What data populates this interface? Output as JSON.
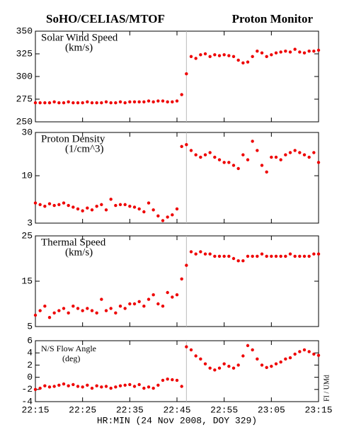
{
  "header_left": "SoHO/CELIAS/MTOF",
  "header_right": "Proton Monitor",
  "xlabel": "HR:MIN (24 Nov 2008, DOY 329)",
  "side_note": "FI / UMd",
  "x": [
    "22:15",
    "22:16",
    "22:17",
    "22:18",
    "22:19",
    "22:20",
    "22:21",
    "22:22",
    "22:23",
    "22:24",
    "22:25",
    "22:26",
    "22:27",
    "22:28",
    "22:29",
    "22:30",
    "22:31",
    "22:32",
    "22:33",
    "22:34",
    "22:35",
    "22:36",
    "22:37",
    "22:38",
    "22:39",
    "22:40",
    "22:41",
    "22:42",
    "22:43",
    "22:44",
    "22:45",
    "22:46",
    "22:47",
    "22:48",
    "22:49",
    "22:50",
    "22:51",
    "22:52",
    "22:53",
    "22:54",
    "22:55",
    "22:56",
    "22:57",
    "22:58",
    "22:59",
    "23:00",
    "23:01",
    "23:02",
    "23:03",
    "23:04",
    "23:05",
    "23:06",
    "23:07",
    "23:08",
    "23:09",
    "23:10",
    "23:11",
    "23:12",
    "23:13",
    "23:14",
    "23:15"
  ],
  "xlim": [
    "22:15",
    "23:15"
  ],
  "xticks": [
    "22:15",
    "22:25",
    "22:35",
    "22:45",
    "22:55",
    "23:05",
    "23:15"
  ],
  "marker_x": "22:47",
  "chart_data": [
    {
      "type": "scatter",
      "title": "Solar Wind Speed",
      "subtitle": "(km/s)",
      "color": "#ee0000",
      "ylim": [
        250,
        350
      ],
      "yticks": [
        250,
        275,
        300,
        325,
        350
      ],
      "values": [
        271,
        271,
        271,
        271,
        272,
        271,
        271,
        272,
        271,
        271,
        271,
        272,
        271,
        271,
        271,
        272,
        271,
        271,
        272,
        271,
        272,
        272,
        272,
        272,
        273,
        272,
        273,
        273,
        272,
        272,
        273,
        280,
        303,
        322,
        320,
        324,
        325,
        322,
        324,
        323,
        324,
        323,
        322,
        318,
        315,
        316,
        322,
        328,
        326,
        322,
        324,
        326,
        327,
        328,
        327,
        330,
        327,
        326,
        328,
        328,
        329
      ]
    },
    {
      "type": "scatter",
      "title": "Proton Density",
      "subtitle": "(1/cm^3)",
      "color": "#ee0000",
      "log": true,
      "ylim": [
        3,
        30
      ],
      "yticks": [
        3,
        10,
        30
      ],
      "values": [
        5,
        4.8,
        4.6,
        4.9,
        4.7,
        4.8,
        5,
        4.7,
        4.5,
        4.3,
        4.1,
        4.4,
        4.2,
        4.6,
        4.8,
        4.2,
        5.5,
        4.7,
        4.8,
        4.8,
        4.6,
        4.5,
        4.3,
        4.0,
        5.0,
        4.2,
        3.6,
        3.2,
        3.5,
        3.7,
        4.3,
        21,
        22,
        19,
        17,
        16,
        17,
        18,
        16,
        15,
        14,
        14,
        13,
        12,
        17,
        15,
        24,
        19,
        13,
        11,
        16,
        16,
        15,
        17,
        18,
        19,
        18,
        17,
        16,
        18,
        14
      ]
    },
    {
      "type": "scatter",
      "title": "Thermal Speed",
      "subtitle": "(km/s)",
      "color": "#ee0000",
      "ylim": [
        5,
        25
      ],
      "yticks": [
        5,
        15,
        25
      ],
      "values": [
        7.5,
        8.5,
        9.5,
        7,
        8,
        8.5,
        9,
        8,
        9.5,
        9,
        8.5,
        9,
        8.5,
        8,
        11,
        8.5,
        9,
        8,
        9.5,
        9,
        10,
        10,
        10.5,
        9.5,
        11,
        12,
        10,
        9.5,
        12.5,
        11.5,
        12,
        15.5,
        18.5,
        21.5,
        21,
        21.5,
        21,
        21,
        20.5,
        20.5,
        20.5,
        20.5,
        20,
        19.5,
        19.5,
        20.5,
        20.5,
        20.5,
        21,
        20.5,
        20.5,
        20.5,
        20.5,
        20.5,
        21,
        20.5,
        20.5,
        20.5,
        20.5,
        21,
        21
      ]
    },
    {
      "type": "scatter",
      "title": "N/S Flow Angle",
      "subtitle": "(deg)",
      "color": "#ee0000",
      "ylim": [
        -4,
        6
      ],
      "yticks": [
        -4,
        -2,
        0,
        2,
        4,
        6
      ],
      "values": [
        -2,
        -1.8,
        -1.4,
        -1.6,
        -1.5,
        -1.3,
        -1.1,
        -1.4,
        -1.2,
        -1.5,
        -1.6,
        -1.3,
        -1.8,
        -1.4,
        -1.6,
        -1.5,
        -1.8,
        -1.6,
        -1.4,
        -1.3,
        -1.2,
        -1.5,
        -1.2,
        -1.8,
        -1.6,
        -1.8,
        -1.3,
        -0.5,
        -0.3,
        -0.4,
        -0.5,
        -1.5,
        5,
        4.5,
        3.5,
        3,
        2.2,
        1.5,
        1.2,
        1.5,
        2.2,
        1.8,
        1.5,
        2,
        3.5,
        5.2,
        4.5,
        3,
        2,
        1.6,
        1.8,
        2.2,
        2.5,
        3,
        3.2,
        3.8,
        4.2,
        4.5,
        4.2,
        3.8,
        3.6
      ]
    }
  ]
}
